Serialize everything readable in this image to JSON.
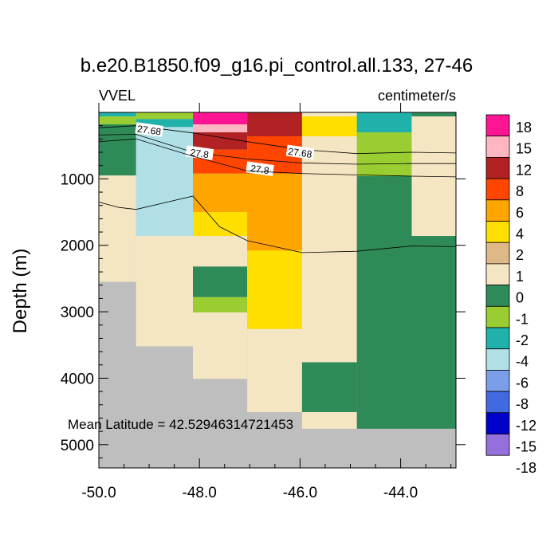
{
  "chart_data": {
    "type": "heatmap",
    "title": "b.e20.B1850.f09_g16.pi_control.all.133, 27-46",
    "left_label": "VVEL",
    "right_label": "centimeter/s",
    "ylabel": "Depth (m)",
    "xlabel": "",
    "xlim": [
      -50.0,
      -42.9
    ],
    "ylim": [
      5350,
      0
    ],
    "x_ticks": [
      -50.0,
      -48.0,
      -46.0,
      -44.0
    ],
    "x_tick_labels": [
      "-50.0",
      "-48.0",
      "-46.0",
      "-44.0"
    ],
    "x_minor_ticks": [
      -49.5,
      -49.0,
      -48.5,
      -47.5,
      -47.0,
      -46.5,
      -45.5,
      -45.0,
      -44.5,
      -43.5,
      -43.0
    ],
    "y_ticks": [
      1000,
      2000,
      3000,
      4000,
      5000
    ],
    "y_tick_labels": [
      "1000",
      "2000",
      "3000",
      "4000",
      "5000"
    ],
    "y_minor_ticks": [
      200,
      400,
      600,
      800,
      1200,
      1400,
      1600,
      1800,
      2200,
      2400,
      2600,
      2800,
      3200,
      3400,
      3600,
      3800,
      4200,
      4400,
      4600,
      4800,
      5200
    ],
    "annotation": "Mean Latitude = 42.52946314721453",
    "land_color": "#bebebe",
    "colorbar": {
      "labels": [
        "18",
        "15",
        "12",
        "8",
        "6",
        "4",
        "2",
        "1",
        "0",
        "-1",
        "-2",
        "-4",
        "-6",
        "-8",
        "-12",
        "-15",
        "-18"
      ],
      "colors": [
        "#ff1493",
        "#ffb6c1",
        "#b22222",
        "#ff4500",
        "#ffa500",
        "#ffdf00",
        "#deb887",
        "#f5e6c3",
        "#2e8b57",
        "#9acd32",
        "#20b2aa",
        "#b0e0e6",
        "#7b9ee8",
        "#4169e1",
        "#0000cd",
        "#9370db"
      ]
    },
    "cells": [
      {
        "x0": -50.0,
        "x1": -49.26,
        "d0": 0,
        "d1": 60,
        "value": -4
      },
      {
        "x0": -50.0,
        "x1": -49.26,
        "d0": 60,
        "d1": 180,
        "value": -2
      },
      {
        "x0": -50.0,
        "x1": -49.26,
        "d0": 180,
        "d1": 950,
        "value": -1
      },
      {
        "x0": -50.0,
        "x1": -49.26,
        "d0": 950,
        "d1": 2550,
        "value": 0
      },
      {
        "x0": -49.26,
        "x1": -48.13,
        "d0": 0,
        "d1": 100,
        "value": -2
      },
      {
        "x0": -49.26,
        "x1": -48.13,
        "d0": 100,
        "d1": 220,
        "value": -4
      },
      {
        "x0": -49.26,
        "x1": -48.13,
        "d0": 220,
        "d1": 1860,
        "value": -6
      },
      {
        "x0": -49.26,
        "x1": -48.13,
        "d0": 1860,
        "d1": 3520,
        "value": 0
      },
      {
        "x0": -48.13,
        "x1": -47.05,
        "d0": 0,
        "d1": 180,
        "value": 15
      },
      {
        "x0": -48.13,
        "x1": -47.05,
        "d0": 180,
        "d1": 300,
        "value": 12
      },
      {
        "x0": -48.13,
        "x1": -47.05,
        "d0": 300,
        "d1": 560,
        "value": 8
      },
      {
        "x0": -48.13,
        "x1": -47.05,
        "d0": 560,
        "d1": 920,
        "value": 6
      },
      {
        "x0": -48.13,
        "x1": -47.05,
        "d0": 920,
        "d1": 1500,
        "value": 4
      },
      {
        "x0": -48.13,
        "x1": -47.05,
        "d0": 1500,
        "d1": 1860,
        "value": 2
      },
      {
        "x0": -48.13,
        "x1": -47.05,
        "d0": 1860,
        "d1": 2320,
        "value": 0
      },
      {
        "x0": -48.13,
        "x1": -47.05,
        "d0": 2320,
        "d1": 2780,
        "value": -1
      },
      {
        "x0": -48.13,
        "x1": -47.05,
        "d0": 2780,
        "d1": 3010,
        "value": -2
      },
      {
        "x0": -48.13,
        "x1": -47.05,
        "d0": 3010,
        "d1": 4010,
        "value": 0
      },
      {
        "x0": -47.05,
        "x1": -45.96,
        "d0": 0,
        "d1": 360,
        "value": 8
      },
      {
        "x0": -47.05,
        "x1": -45.96,
        "d0": 360,
        "d1": 920,
        "value": 6
      },
      {
        "x0": -47.05,
        "x1": -45.96,
        "d0": 920,
        "d1": 2080,
        "value": 4
      },
      {
        "x0": -47.05,
        "x1": -45.96,
        "d0": 2080,
        "d1": 3260,
        "value": 2
      },
      {
        "x0": -47.05,
        "x1": -45.96,
        "d0": 3260,
        "d1": 4510,
        "value": 0
      },
      {
        "x0": -45.96,
        "x1": -44.87,
        "d0": 0,
        "d1": 60,
        "value": 0
      },
      {
        "x0": -45.96,
        "x1": -44.87,
        "d0": 60,
        "d1": 360,
        "value": 2
      },
      {
        "x0": -45.96,
        "x1": -44.87,
        "d0": 360,
        "d1": 3760,
        "value": 0
      },
      {
        "x0": -45.96,
        "x1": -44.87,
        "d0": 3760,
        "d1": 4510,
        "value": -1
      },
      {
        "x0": -45.96,
        "x1": -44.87,
        "d0": 4510,
        "d1": 4760,
        "value": 0
      },
      {
        "x0": -44.87,
        "x1": -43.78,
        "d0": 0,
        "d1": 300,
        "value": -4
      },
      {
        "x0": -44.87,
        "x1": -43.78,
        "d0": 300,
        "d1": 960,
        "value": -2
      },
      {
        "x0": -44.87,
        "x1": -43.78,
        "d0": 960,
        "d1": 4760,
        "value": -1
      },
      {
        "x0": -43.78,
        "x1": -42.9,
        "d0": 0,
        "d1": 60,
        "value": -1
      },
      {
        "x0": -43.78,
        "x1": -42.9,
        "d0": 60,
        "d1": 1860,
        "value": 0
      },
      {
        "x0": -43.78,
        "x1": -42.9,
        "d0": 1860,
        "d1": 4760,
        "value": -1
      }
    ],
    "contours": [
      {
        "label": "27.68",
        "points": [
          [
            -50.0,
            230
          ],
          [
            -49.26,
            200
          ],
          [
            -48.13,
            310
          ],
          [
            -47.05,
            440
          ],
          [
            -45.96,
            560
          ],
          [
            -44.87,
            620
          ],
          [
            -43.78,
            600
          ],
          [
            -42.9,
            610
          ]
        ],
        "label_positions": [
          {
            "x": -49.0,
            "d": 270
          },
          {
            "x": -46.0,
            "d": 610
          }
        ]
      },
      {
        "label": "27.8",
        "points": [
          [
            -50.0,
            340
          ],
          [
            -49.26,
            330
          ],
          [
            -48.13,
            600
          ],
          [
            -47.05,
            700
          ],
          [
            -45.96,
            760
          ],
          [
            -44.87,
            780
          ],
          [
            -43.78,
            770
          ],
          [
            -42.9,
            770
          ]
        ],
        "label_positions": [
          {
            "x": -48.0,
            "d": 620
          },
          {
            "x": -46.8,
            "d": 860
          }
        ]
      },
      {
        "label": "",
        "points": [
          [
            -50.0,
            440
          ],
          [
            -49.26,
            400
          ],
          [
            -48.13,
            660
          ],
          [
            -47.05,
            880
          ],
          [
            -45.96,
            920
          ],
          [
            -44.87,
            940
          ],
          [
            -43.78,
            960
          ],
          [
            -42.9,
            970
          ]
        ],
        "label_positions": []
      },
      {
        "label": "",
        "points": [
          [
            -50.0,
            1350
          ],
          [
            -49.6,
            1430
          ],
          [
            -49.26,
            1460
          ],
          [
            -48.13,
            1260
          ],
          [
            -47.6,
            1720
          ],
          [
            -47.05,
            1930
          ],
          [
            -45.96,
            2110
          ],
          [
            -44.87,
            2090
          ],
          [
            -43.78,
            2010
          ],
          [
            -42.9,
            2020
          ]
        ],
        "label_positions": []
      }
    ]
  }
}
